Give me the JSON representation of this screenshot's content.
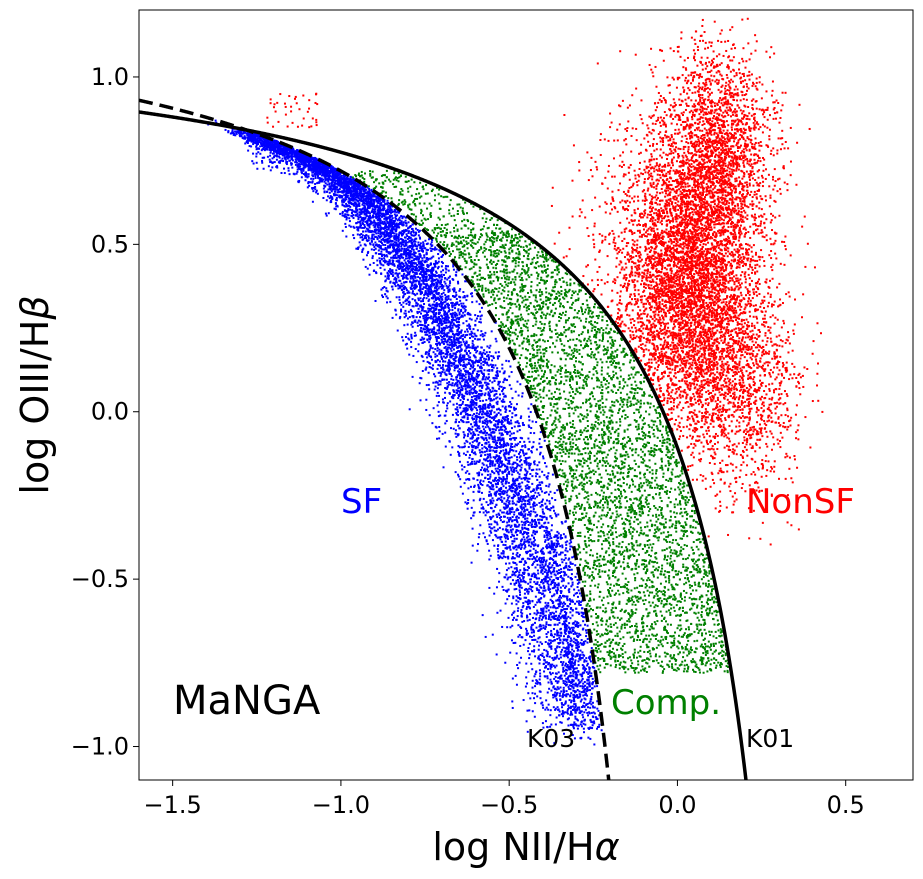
{
  "chart_data": {
    "type": "scatter",
    "xlabel": "log NII/H",
    "xlabel_symbol": "α",
    "ylabel": "log OIII/H",
    "ylabel_symbol": "β",
    "xlim": [
      -1.6,
      0.7
    ],
    "ylim": [
      -1.1,
      1.2
    ],
    "x_ticks": [
      -1.5,
      -1.0,
      -0.5,
      0.0,
      0.5
    ],
    "x_tick_labels": [
      "−1.5",
      "−1.0",
      "−0.5",
      "0.0",
      "0.5"
    ],
    "y_ticks": [
      -1.0,
      -0.5,
      0.0,
      0.5,
      1.0
    ],
    "y_tick_labels": [
      "−1.0",
      "−0.5",
      "0.0",
      "0.5",
      "1.0"
    ],
    "grid": false,
    "curves": [
      {
        "name": "K03",
        "formula": "0.61/(x-0.05)+1.3",
        "style": "dashed",
        "color": "#000000"
      },
      {
        "name": "K01",
        "formula": "0.61/(x-0.47)+1.19",
        "style": "solid",
        "color": "#000000"
      }
    ],
    "series": [
      {
        "name": "SF",
        "color": "#0000ff"
      },
      {
        "name": "Comp.",
        "color": "#008000"
      },
      {
        "name": "NonSF",
        "color": "#ff0000"
      }
    ],
    "annotations": {
      "survey": "MaNGA",
      "sf": "SF",
      "comp": "Comp.",
      "nonsf": "NonSF",
      "k03": "K03",
      "k01": "K01"
    }
  }
}
